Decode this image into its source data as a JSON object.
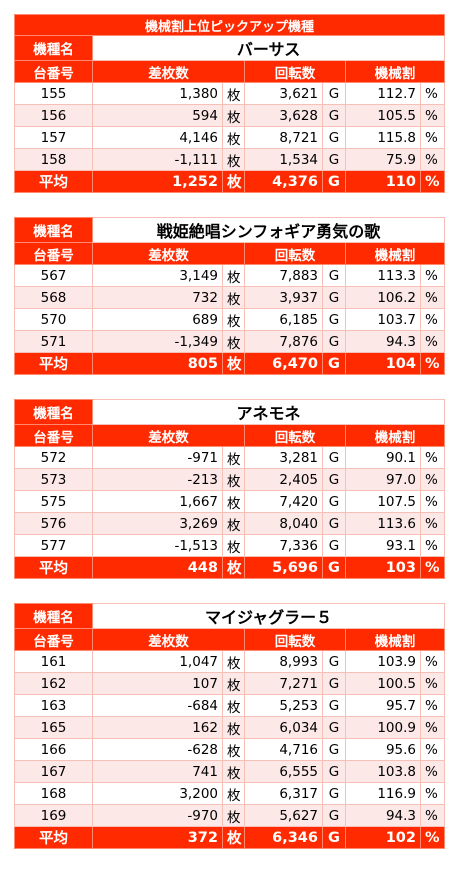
{
  "title": "機械割上位ピックアップ機種",
  "tables": [
    {
      "name_label": "機種名",
      "name": "バーサス",
      "headers": [
        "台番号",
        "差枚数",
        "回転数",
        "機械割"
      ],
      "rows": [
        [
          "155",
          "1,380",
          "枚",
          "3,621",
          "G",
          "112.7",
          "%"
        ],
        [
          "156",
          "594",
          "枚",
          "3,628",
          "G",
          "105.5",
          "%"
        ],
        [
          "157",
          "4,146",
          "枚",
          "8,721",
          "G",
          "115.8",
          "%"
        ],
        [
          "158",
          "-1,111",
          "枚",
          "1,534",
          "G",
          "75.9",
          "%"
        ]
      ],
      "average": [
        "平均",
        "1,252",
        "枚",
        "4,376",
        "G",
        "110",
        "%"
      ]
    },
    {
      "name_label": "機種名",
      "name": "戦姫絶唱シンフォギア勇気の歌",
      "headers": [
        "台番号",
        "差枚数",
        "回転数",
        "機械割"
      ],
      "rows": [
        [
          "567",
          "3,149",
          "枚",
          "7,883",
          "G",
          "113.3",
          "%"
        ],
        [
          "568",
          "732",
          "枚",
          "3,937",
          "G",
          "106.2",
          "%"
        ],
        [
          "570",
          "689",
          "枚",
          "6,185",
          "G",
          "103.7",
          "%"
        ],
        [
          "571",
          "-1,349",
          "枚",
          "7,876",
          "G",
          "94.3",
          "%"
        ]
      ],
      "average": [
        "平均",
        "805",
        "枚",
        "6,470",
        "G",
        "104",
        "%"
      ]
    },
    {
      "name_label": "機種名",
      "name": "アネモネ",
      "headers": [
        "台番号",
        "差枚数",
        "回転数",
        "機械割"
      ],
      "rows": [
        [
          "572",
          "-971",
          "枚",
          "3,281",
          "G",
          "90.1",
          "%"
        ],
        [
          "573",
          "-213",
          "枚",
          "2,405",
          "G",
          "97.0",
          "%"
        ],
        [
          "575",
          "1,667",
          "枚",
          "7,420",
          "G",
          "107.5",
          "%"
        ],
        [
          "576",
          "3,269",
          "枚",
          "8,040",
          "G",
          "113.6",
          "%"
        ],
        [
          "577",
          "-1,513",
          "枚",
          "7,336",
          "G",
          "93.1",
          "%"
        ]
      ],
      "average": [
        "平均",
        "448",
        "枚",
        "5,696",
        "G",
        "103",
        "%"
      ]
    },
    {
      "name_label": "機種名",
      "name": "マイジャグラー５",
      "headers": [
        "台番号",
        "差枚数",
        "回転数",
        "機械割"
      ],
      "rows": [
        [
          "161",
          "1,047",
          "枚",
          "8,993",
          "G",
          "103.9",
          "%"
        ],
        [
          "162",
          "107",
          "枚",
          "7,271",
          "G",
          "100.5",
          "%"
        ],
        [
          "163",
          "-684",
          "枚",
          "5,253",
          "G",
          "95.7",
          "%"
        ],
        [
          "165",
          "162",
          "枚",
          "6,034",
          "G",
          "100.9",
          "%"
        ],
        [
          "166",
          "-628",
          "枚",
          "4,716",
          "G",
          "95.6",
          "%"
        ],
        [
          "167",
          "741",
          "枚",
          "6,555",
          "G",
          "103.8",
          "%"
        ],
        [
          "168",
          "3,200",
          "枚",
          "6,317",
          "G",
          "116.9",
          "%"
        ],
        [
          "169",
          "-970",
          "枚",
          "5,627",
          "G",
          "94.3",
          "%"
        ]
      ],
      "average": [
        "平均",
        "372",
        "枚",
        "6,346",
        "G",
        "102",
        "%"
      ]
    }
  ]
}
